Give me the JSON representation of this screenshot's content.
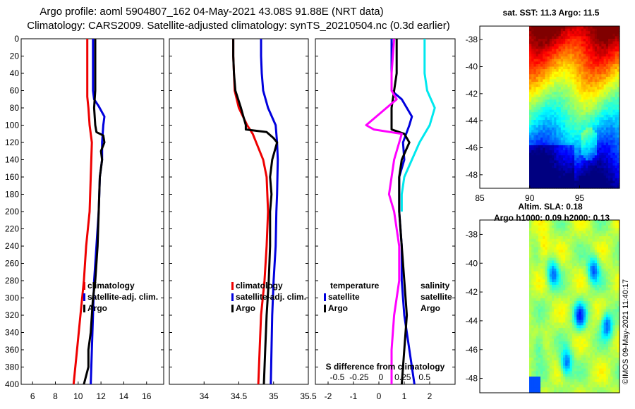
{
  "header": {
    "title_line1": "Argo profile: aoml 5904807_162 04-May-2021 43.08S 91.88E (NRT data)",
    "title_line2": "Climatology: CARS2009. Satellite-adjusted climatology: synTS_20210504.nc (0.3d earlier)"
  },
  "colors": {
    "climatology": "#ee0000",
    "satellite": "#0000dd",
    "argo": "#000000",
    "salinity_argo": "#ff00ff",
    "salinity_sat": "#00e8ee"
  },
  "chart_data": [
    {
      "type": "line",
      "name": "temperature-profile",
      "yticks": [
        0,
        20,
        40,
        60,
        80,
        100,
        120,
        140,
        160,
        180,
        200,
        220,
        240,
        260,
        280,
        300,
        320,
        340,
        360,
        380,
        400
      ],
      "ylim": [
        400,
        0
      ],
      "xlim": [
        5,
        17.5
      ],
      "xticks": [
        6,
        8,
        10,
        12,
        14,
        16
      ],
      "legend": [
        "climatology",
        "satellite-adj. clim.",
        "Argo"
      ],
      "legend_position": "bottom-right",
      "series": [
        {
          "name": "climatology",
          "color": "#ee0000",
          "points": [
            [
              10.8,
              0
            ],
            [
              10.8,
              20
            ],
            [
              10.8,
              40
            ],
            [
              10.8,
              60
            ],
            [
              10.8,
              67
            ],
            [
              10.9,
              80
            ],
            [
              11.0,
              100
            ],
            [
              11.2,
              120
            ],
            [
              11.1,
              160
            ],
            [
              11.0,
              200
            ],
            [
              10.7,
              240
            ],
            [
              10.5,
              280
            ],
            [
              10.2,
              320
            ],
            [
              9.9,
              360
            ],
            [
              9.6,
              400
            ]
          ]
        },
        {
          "name": "satellite-adj. clim.",
          "color": "#0000dd",
          "points": [
            [
              11.3,
              0
            ],
            [
              11.3,
              20
            ],
            [
              11.3,
              40
            ],
            [
              11.3,
              60
            ],
            [
              11.4,
              70
            ],
            [
              11.8,
              78
            ],
            [
              12.3,
              90
            ],
            [
              12.2,
              100
            ],
            [
              12.1,
              120
            ],
            [
              12.1,
              140
            ],
            [
              11.9,
              160
            ],
            [
              11.8,
              200
            ],
            [
              11.6,
              240
            ],
            [
              11.4,
              280
            ],
            [
              11.3,
              320
            ],
            [
              11.2,
              360
            ],
            [
              11.1,
              400
            ]
          ]
        },
        {
          "name": "Argo",
          "color": "#000000",
          "points": [
            [
              11.5,
              0
            ],
            [
              11.5,
              20
            ],
            [
              11.5,
              40
            ],
            [
              11.5,
              60
            ],
            [
              11.4,
              80
            ],
            [
              11.5,
              100
            ],
            [
              11.6,
              108
            ],
            [
              12.2,
              112
            ],
            [
              12.3,
              120
            ],
            [
              12.0,
              130
            ],
            [
              12.1,
              140
            ],
            [
              11.9,
              160
            ],
            [
              11.8,
              200
            ],
            [
              11.7,
              240
            ],
            [
              11.5,
              280
            ],
            [
              11.3,
              300
            ],
            [
              11.2,
              320
            ],
            [
              11.1,
              340
            ],
            [
              10.9,
              360
            ],
            [
              10.9,
              380
            ],
            [
              10.5,
              400
            ]
          ]
        }
      ]
    },
    {
      "type": "line",
      "name": "salinity-profile",
      "ylim": [
        400,
        0
      ],
      "xlim": [
        33.5,
        35.5
      ],
      "xticks": [
        34,
        34.5,
        35,
        35.5
      ],
      "xticklabels": [
        "34",
        "34.5",
        "35",
        "35.5"
      ],
      "legend": [
        "climatology",
        "satellite-adj. clim.",
        "Argo"
      ],
      "legend_position": "bottom-right",
      "series": [
        {
          "name": "climatology",
          "color": "#ee0000",
          "points": [
            [
              34.42,
              0
            ],
            [
              34.42,
              20
            ],
            [
              34.43,
              40
            ],
            [
              34.44,
              60
            ],
            [
              34.5,
              80
            ],
            [
              34.62,
              100
            ],
            [
              34.7,
              110
            ],
            [
              34.75,
              120
            ],
            [
              34.85,
              140
            ],
            [
              34.9,
              160
            ],
            [
              34.92,
              200
            ],
            [
              34.9,
              240
            ],
            [
              34.87,
              280
            ],
            [
              34.82,
              320
            ],
            [
              34.8,
              360
            ],
            [
              34.78,
              400
            ]
          ]
        },
        {
          "name": "satellite-adj. clim.",
          "color": "#0000dd",
          "points": [
            [
              34.82,
              0
            ],
            [
              34.82,
              20
            ],
            [
              34.83,
              40
            ],
            [
              34.85,
              60
            ],
            [
              34.92,
              80
            ],
            [
              35.03,
              100
            ],
            [
              35.05,
              120
            ],
            [
              35.06,
              140
            ],
            [
              35.05,
              180
            ],
            [
              35.04,
              200
            ],
            [
              35.03,
              240
            ],
            [
              35.0,
              280
            ],
            [
              34.98,
              320
            ],
            [
              34.97,
              360
            ],
            [
              34.96,
              400
            ]
          ]
        },
        {
          "name": "Argo",
          "color": "#000000",
          "points": [
            [
              34.42,
              0
            ],
            [
              34.42,
              20
            ],
            [
              34.43,
              40
            ],
            [
              34.45,
              60
            ],
            [
              34.53,
              80
            ],
            [
              34.6,
              100
            ],
            [
              34.6,
              105
            ],
            [
              34.9,
              108
            ],
            [
              35.0,
              115
            ],
            [
              35.05,
              120
            ],
            [
              34.98,
              140
            ],
            [
              34.95,
              160
            ],
            [
              34.97,
              180
            ],
            [
              34.95,
              200
            ],
            [
              34.95,
              240
            ],
            [
              34.93,
              280
            ],
            [
              34.9,
              320
            ],
            [
              34.88,
              360
            ],
            [
              34.86,
              400
            ]
          ]
        }
      ]
    },
    {
      "type": "line",
      "name": "difference-profile",
      "ylim": [
        400,
        0
      ],
      "xlim": [
        -2.5,
        3.0
      ],
      "xticks": [
        -2,
        -1,
        0,
        1,
        2
      ],
      "sxlim": [
        -0.75,
        0.85
      ],
      "sxticks": [
        -0.5,
        -0.25,
        0,
        0.25,
        0.5
      ],
      "sxticklabels": [
        "-0.5",
        "-0.25",
        "0",
        "0.25",
        "0.5"
      ],
      "xlabel": "S difference from climatology",
      "legend_headers": [
        "temperature",
        "salinity"
      ],
      "legend": [
        "satellite",
        "Argo"
      ],
      "legend_position": "bottom-right",
      "series": [
        {
          "name": "T satellite",
          "color": "#0000dd",
          "points": [
            [
              0.5,
              0
            ],
            [
              0.5,
              40
            ],
            [
              0.5,
              60
            ],
            [
              0.9,
              70
            ],
            [
              1.3,
              90
            ],
            [
              1.2,
              100
            ],
            [
              0.95,
              120
            ],
            [
              1.0,
              140
            ],
            [
              0.8,
              160
            ],
            [
              0.8,
              200
            ],
            [
              0.9,
              240
            ],
            [
              0.9,
              280
            ],
            [
              1.0,
              320
            ],
            [
              1.2,
              360
            ],
            [
              1.4,
              400
            ]
          ]
        },
        {
          "name": "T Argo",
          "color": "#000000",
          "points": [
            [
              0.7,
              0
            ],
            [
              0.7,
              40
            ],
            [
              0.6,
              60
            ],
            [
              0.5,
              80
            ],
            [
              0.5,
              105
            ],
            [
              1.0,
              110
            ],
            [
              1.2,
              120
            ],
            [
              0.9,
              140
            ],
            [
              0.8,
              160
            ],
            [
              0.8,
              200
            ],
            [
              0.9,
              240
            ],
            [
              1.0,
              280
            ],
            [
              1.1,
              320
            ],
            [
              1.0,
              360
            ],
            [
              0.9,
              400
            ]
          ]
        },
        {
          "name": "S Argo",
          "color": "#ff00ff",
          "points": [
            [
              0.6,
              0
            ],
            [
              0.55,
              20
            ],
            [
              0.5,
              40
            ],
            [
              0.5,
              60
            ],
            [
              0.7,
              70
            ],
            [
              0.3,
              80
            ],
            [
              -0.5,
              100
            ],
            [
              -0.2,
              105
            ],
            [
              0.9,
              110
            ],
            [
              0.8,
              120
            ],
            [
              0.6,
              140
            ],
            [
              0.5,
              160
            ],
            [
              0.4,
              180
            ],
            [
              0.6,
              200
            ],
            [
              0.8,
              240
            ],
            [
              0.8,
              280
            ],
            [
              0.6,
              320
            ],
            [
              0.5,
              360
            ],
            [
              0.5,
              400
            ]
          ]
        },
        {
          "name": "S satellite",
          "color": "#00e8ee",
          "points": [
            [
              1.8,
              0
            ],
            [
              1.8,
              20
            ],
            [
              1.8,
              40
            ],
            [
              1.9,
              60
            ],
            [
              2.2,
              80
            ],
            [
              2.0,
              100
            ],
            [
              1.6,
              120
            ],
            [
              1.3,
              140
            ],
            [
              1.0,
              160
            ],
            [
              0.9,
              180
            ],
            [
              0.9,
              200
            ]
          ]
        }
      ]
    },
    {
      "type": "heatmap",
      "name": "sst-map",
      "title": "sat. SST: 11.3 Argo: 11.5",
      "xlim": [
        85,
        99
      ],
      "xticks": [
        85,
        90,
        95
      ],
      "ylim": [
        -49,
        -37
      ],
      "yticks": [
        -38,
        -40,
        -42,
        -44,
        -46,
        -48
      ],
      "data_from_lon": 90
    },
    {
      "type": "heatmap",
      "name": "sla-map",
      "title_line1": "Altim. SLA: 0.18",
      "title_line2": "Argo h1000: 0.09 h2000: 0.13",
      "ylim": [
        -49,
        -37
      ],
      "yticks": [
        -38,
        -40,
        -42,
        -44,
        -46,
        -48
      ]
    }
  ],
  "credit": "©IMOS 09-May-2021 11:40:17"
}
